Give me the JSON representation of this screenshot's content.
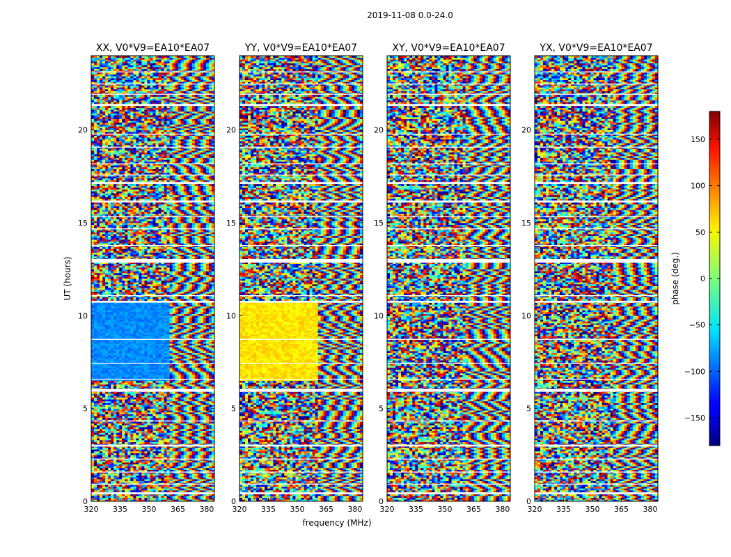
{
  "figure": {
    "suptitle": "2019-11-08 0.0-24.0",
    "xlabel": "frequency (MHz)",
    "ylabel": "UT (hours)"
  },
  "chart_data": {
    "type": "heatmap",
    "panels": [
      {
        "title": "XX, V0*V9=EA10*EA07",
        "pol": "XX"
      },
      {
        "title": "YY, V0*V9=EA10*EA07",
        "pol": "YY"
      },
      {
        "title": "XY, V0*V9=EA10*EA07",
        "pol": "XY"
      },
      {
        "title": "YX, V0*V9=EA10*EA07",
        "pol": "YX"
      }
    ],
    "x_range": [
      320,
      384
    ],
    "y_range": [
      0,
      24
    ],
    "x_ticks": [
      320,
      335,
      350,
      365,
      380
    ],
    "y_ticks": [
      0,
      5,
      10,
      15,
      20
    ],
    "colorbar": {
      "label": "phase (deg.)",
      "range": [
        -180,
        180
      ],
      "ticks": [
        -150,
        -100,
        -50,
        0,
        50,
        100,
        150
      ],
      "tick_labels": [
        "−150",
        "−100",
        "−50",
        "0",
        "50",
        "100",
        "150"
      ],
      "colormap": "jet"
    },
    "flagged_ut_bands": [
      [
        0.38,
        0.48
      ],
      [
        0.9,
        0.95
      ],
      [
        1.55,
        1.6
      ],
      [
        2.25,
        2.3
      ],
      [
        2.95,
        3.05
      ],
      [
        4.3,
        4.35
      ],
      [
        5.9,
        6.05
      ],
      [
        6.55,
        6.6
      ],
      [
        7.4,
        7.45
      ],
      [
        8.7,
        8.75
      ],
      [
        10.7,
        10.8
      ],
      [
        11.05,
        11.1
      ],
      [
        12.85,
        13.05
      ],
      [
        13.75,
        13.8
      ],
      [
        14.65,
        14.7
      ],
      [
        15.3,
        15.35
      ],
      [
        16.1,
        16.2
      ],
      [
        17.1,
        17.2
      ],
      [
        17.55,
        17.6
      ],
      [
        18.15,
        18.2
      ],
      [
        19.05,
        19.1
      ],
      [
        19.75,
        19.8
      ],
      [
        21.3,
        21.4
      ],
      [
        21.9,
        21.95
      ],
      [
        22.45,
        22.5
      ],
      [
        23.1,
        23.15
      ]
    ]
  }
}
